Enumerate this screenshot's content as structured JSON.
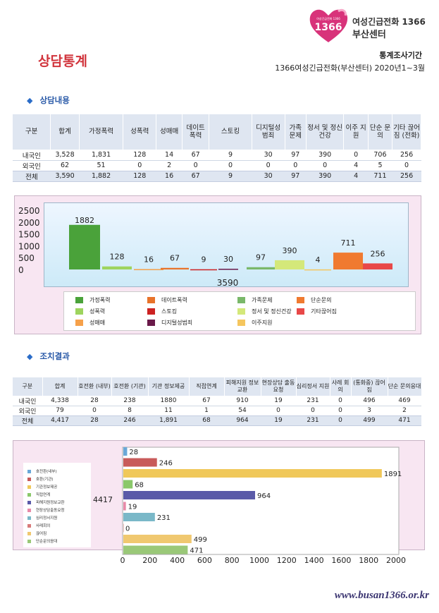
{
  "header": {
    "logo_text": "여성긴급전화 1366",
    "org_line1": "여성긴급전화 1366",
    "org_line2": "부산센터",
    "title": "상담통계",
    "period_label": "통계조사기간",
    "period_value": "1366여성긴급전화(부산센터)  2020년1~3월"
  },
  "section1": {
    "heading": "상담내용",
    "columns": [
      "구분",
      "합계",
      "가정폭력",
      "성폭력",
      "성매매",
      "데이트 폭력",
      "스토킹",
      "디지털성 범죄",
      "가족 문제",
      "정서 및 정신건강",
      "이주 지원",
      "단순 문의",
      "기타 끊어짐 (전화)"
    ],
    "rows": [
      [
        "내국인",
        "3,528",
        "1,831",
        "128",
        "14",
        "67",
        "9",
        "30",
        "97",
        "390",
        "0",
        "706",
        "256"
      ],
      [
        "외국인",
        "62",
        "51",
        "0",
        "2",
        "0",
        "0",
        "0",
        "0",
        "0",
        "4",
        "5",
        "0"
      ],
      [
        "전체",
        "3,590",
        "1,882",
        "128",
        "16",
        "67",
        "9",
        "30",
        "97",
        "390",
        "4",
        "711",
        "256"
      ]
    ]
  },
  "section2": {
    "heading": "조치결과",
    "columns": [
      "구분",
      "합계",
      "호전환 (내부)",
      "호전환 (기관)",
      "기관 정보제공",
      "직접연계",
      "피해지원 정보교환",
      "현장상담 출동요청",
      "심리정서 지원",
      "사례 회의",
      "(통화중) 끊어짐",
      "단순 문의응대"
    ],
    "rows": [
      [
        "내국인",
        "4,338",
        "28",
        "238",
        "1880",
        "67",
        "910",
        "19",
        "231",
        "0",
        "496",
        "469"
      ],
      [
        "외국인",
        "79",
        "0",
        "8",
        "11",
        "1",
        "54",
        "0",
        "0",
        "0",
        "3",
        "2"
      ],
      [
        "전체",
        "4,417",
        "28",
        "246",
        "1,891",
        "68",
        "964",
        "19",
        "231",
        "0",
        "499",
        "471"
      ]
    ]
  },
  "chart_data": [
    {
      "type": "bar",
      "title": "",
      "ylim": [
        0,
        2500
      ],
      "yticks": [
        "2500",
        "2000",
        "1500",
        "1000",
        "500",
        "0"
      ],
      "total_label": "3590",
      "series": [
        {
          "name": "가정폭력",
          "value": 1882,
          "color": "#4aa23a"
        },
        {
          "name": "성폭력",
          "value": 128,
          "color": "#9ed45e"
        },
        {
          "name": "성매매",
          "value": 16,
          "color": "#f6a14a"
        },
        {
          "name": "데이트폭력",
          "value": 67,
          "color": "#e8732a"
        },
        {
          "name": "스토킹",
          "value": 9,
          "color": "#cc2222"
        },
        {
          "name": "디지털성범죄",
          "value": 30,
          "color": "#6a1a4a"
        },
        {
          "name": "가족문제",
          "value": 97,
          "color": "#7ab86a"
        },
        {
          "name": "정서 및 정신건강",
          "value": 390,
          "color": "#d4e87a"
        },
        {
          "name": "이주지원",
          "value": 4,
          "color": "#f5c65e"
        },
        {
          "name": "단순문의",
          "value": 711,
          "color": "#f07a30"
        },
        {
          "name": "기타끊어짐",
          "value": 256,
          "color": "#e84848"
        }
      ],
      "legend_order": [
        "가정폭력",
        "데이트폭력",
        "가족문제",
        "단순문의",
        "성폭력",
        "스토킹",
        "정서 및 정신건강",
        "기타끊어짐",
        "성매매",
        "디지털성범죄",
        "이주지원"
      ]
    },
    {
      "type": "bar",
      "orientation": "horizontal",
      "title": "",
      "xlim": [
        0,
        2000
      ],
      "xticks": [
        "0",
        "200",
        "400",
        "600",
        "800",
        "1000",
        "1200",
        "1400",
        "1600",
        "1800",
        "2000"
      ],
      "total_label": "4417",
      "series": [
        {
          "name": "호전환(내부)",
          "value": 28,
          "color": "#6aa8d8"
        },
        {
          "name": "호환(기관)",
          "value": 246,
          "color": "#c85a5a"
        },
        {
          "name": "기관정보제공",
          "value": 1891,
          "color": "#f0c85a"
        },
        {
          "name": "직접연계",
          "value": 68,
          "color": "#8ac86a"
        },
        {
          "name": "피해지원정보교환",
          "value": 964,
          "color": "#5a5aa8"
        },
        {
          "name": "현장상담출동요청",
          "value": 19,
          "color": "#e88aa8"
        },
        {
          "name": "심리정서지원",
          "value": 231,
          "color": "#7ab8c8"
        },
        {
          "name": "사례회의",
          "value": 0,
          "color": "#d87a7a"
        },
        {
          "name": "끊어짐",
          "value": 499,
          "color": "#f0c870"
        },
        {
          "name": "단순문의응대",
          "value": 471,
          "color": "#9ac878"
        }
      ]
    }
  ],
  "footer": {
    "site": "www.busan1366.or.kr"
  }
}
